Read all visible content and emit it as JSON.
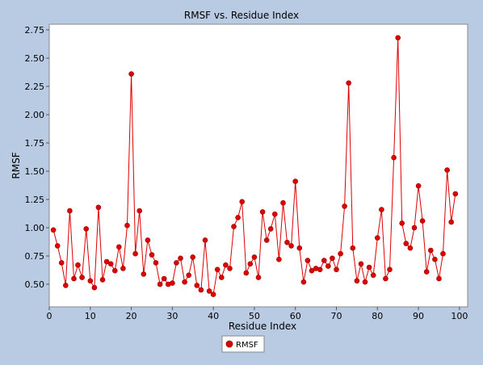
{
  "chart_data": {
    "type": "line",
    "title": "RMSF vs. Residue Index",
    "xlabel": "Residue Index",
    "ylabel": "RMSF",
    "xlim": [
      0,
      102
    ],
    "ylim": [
      0.3,
      2.8
    ],
    "xticks": [
      0,
      10,
      20,
      30,
      40,
      50,
      60,
      70,
      80,
      90,
      100
    ],
    "yticks": [
      0.5,
      0.75,
      1.0,
      1.25,
      1.5,
      1.75,
      2.0,
      2.25,
      2.5,
      2.75
    ],
    "grid": false,
    "legend_position": "bottom-center",
    "series": [
      {
        "name": "RMSF",
        "color": "#dd0000",
        "marker": "circle",
        "x": [
          1,
          2,
          3,
          4,
          5,
          6,
          7,
          8,
          9,
          10,
          11,
          12,
          13,
          14,
          15,
          16,
          17,
          18,
          19,
          20,
          21,
          22,
          23,
          24,
          25,
          26,
          27,
          28,
          29,
          30,
          31,
          32,
          33,
          34,
          35,
          36,
          37,
          38,
          39,
          40,
          41,
          42,
          43,
          44,
          45,
          46,
          47,
          48,
          49,
          50,
          51,
          52,
          53,
          54,
          55,
          56,
          57,
          58,
          59,
          60,
          61,
          62,
          63,
          64,
          65,
          66,
          67,
          68,
          69,
          70,
          71,
          72,
          73,
          74,
          75,
          76,
          77,
          78,
          79,
          80,
          81,
          82,
          83,
          84,
          85,
          86,
          87,
          88,
          89,
          90,
          91,
          92,
          93,
          94,
          95,
          96,
          97,
          98,
          99
        ],
        "y": [
          0.98,
          0.84,
          0.69,
          0.49,
          1.15,
          0.55,
          0.67,
          0.56,
          0.99,
          0.53,
          0.47,
          1.18,
          0.54,
          0.7,
          0.68,
          0.62,
          0.83,
          0.64,
          1.02,
          2.36,
          0.77,
          1.15,
          0.59,
          0.89,
          0.76,
          0.69,
          0.5,
          0.55,
          0.5,
          0.51,
          0.69,
          0.73,
          0.52,
          0.58,
          0.74,
          0.49,
          0.45,
          0.89,
          0.44,
          0.41,
          0.63,
          0.56,
          0.67,
          0.64,
          1.01,
          1.09,
          1.23,
          0.6,
          0.68,
          0.74,
          0.56,
          1.14,
          0.89,
          0.99,
          1.12,
          0.72,
          1.22,
          0.87,
          0.84,
          1.41,
          0.82,
          0.52,
          0.71,
          0.62,
          0.64,
          0.63,
          0.71,
          0.66,
          0.73,
          0.63,
          0.77,
          1.19,
          2.28,
          0.82,
          0.53,
          0.68,
          0.52,
          0.65,
          0.58,
          0.91,
          1.16,
          0.55,
          0.63,
          1.62,
          2.68,
          1.04,
          0.86,
          0.82,
          1.0,
          1.37,
          1.06,
          0.61,
          0.8,
          0.72,
          0.55,
          0.77,
          1.51,
          1.05,
          1.3
        ]
      }
    ]
  }
}
